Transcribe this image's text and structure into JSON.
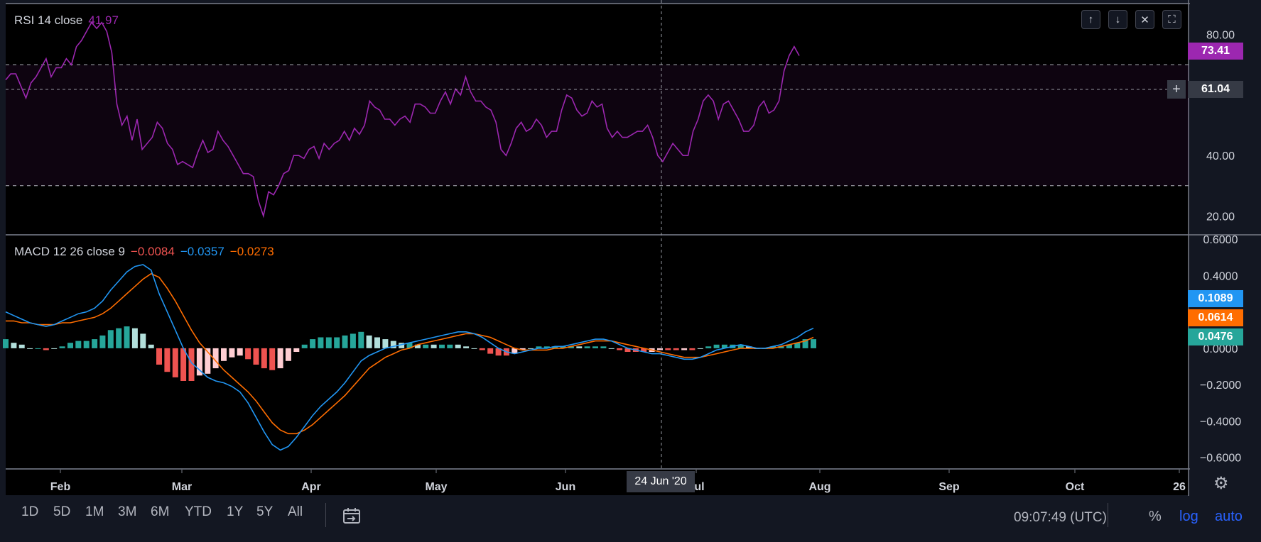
{
  "chart_data": [
    {
      "type": "line",
      "title": "RSI 14 close",
      "current_label": "41.97",
      "x_ticks": [
        "Feb",
        "Mar",
        "Apr",
        "May",
        "Jun",
        "Jul",
        "Aug",
        "Sep",
        "Oct",
        "26"
      ],
      "y_ticks": [
        "80.00",
        "40.00",
        "20.00"
      ],
      "ylim": [
        14,
        90
      ],
      "bands": {
        "upper": 70,
        "lower": 30
      },
      "crosshair_value": 61.04,
      "last_value": 73.41,
      "series": [
        {
          "values": [
            65,
            67,
            67,
            63,
            59,
            64,
            66,
            69,
            72,
            66,
            69,
            69,
            72,
            70,
            76,
            78,
            81,
            84,
            82,
            84,
            81,
            74,
            57,
            50,
            53,
            45,
            52,
            42,
            44,
            46,
            51,
            49,
            44,
            42,
            37,
            38,
            37,
            36,
            41,
            45,
            41,
            42,
            48,
            45,
            43,
            40,
            37,
            34,
            34,
            33,
            25,
            20,
            28,
            27,
            30,
            34,
            35,
            40,
            40,
            39,
            42,
            43,
            39,
            44,
            42,
            44,
            45,
            48,
            45,
            49,
            47,
            50,
            58,
            56,
            55,
            52,
            52,
            50,
            52,
            53,
            51,
            57,
            57,
            56,
            54,
            54,
            58,
            61,
            57,
            62,
            60,
            66,
            61,
            58,
            58,
            56,
            55,
            51,
            42,
            40,
            44,
            49,
            51,
            48,
            49,
            52,
            50,
            46,
            48,
            48,
            55,
            60,
            59,
            55,
            53,
            54,
            58,
            56,
            57,
            49,
            46,
            48,
            46,
            46,
            47,
            48,
            48,
            50,
            46,
            40,
            38,
            41,
            44,
            42,
            40,
            40,
            48,
            52,
            58,
            60,
            58,
            52,
            57,
            58,
            55,
            52,
            48,
            48,
            50,
            56,
            58,
            54,
            55,
            58,
            68,
            73,
            76,
            73
          ]
        }
      ]
    },
    {
      "type": "line",
      "title": "MACD 12 26 close 9",
      "legend_values": [
        "−0.0084",
        "−0.0357",
        "−0.0273"
      ],
      "x_ticks": [
        "Feb",
        "Mar",
        "Apr",
        "May",
        "Jun",
        "Jul",
        "Aug",
        "Sep",
        "Oct",
        "26"
      ],
      "y_ticks": [
        "0.6000",
        "0.4000",
        "0.0000",
        "−0.2000",
        "−0.4000",
        "−0.6000"
      ],
      "ylim": [
        -0.66,
        0.62
      ],
      "last_labels": [
        "0.1089",
        "0.0614",
        "0.0476"
      ],
      "series": [
        {
          "values": [
            0.2,
            0.18,
            0.16,
            0.14,
            0.13,
            0.12,
            0.13,
            0.15,
            0.17,
            0.19,
            0.2,
            0.22,
            0.26,
            0.32,
            0.37,
            0.42,
            0.45,
            0.46,
            0.43,
            0.3,
            0.2,
            0.1,
            0.0,
            -0.08,
            -0.12,
            -0.16,
            -0.18,
            -0.19,
            -0.21,
            -0.24,
            -0.3,
            -0.38,
            -0.46,
            -0.53,
            -0.56,
            -0.54,
            -0.49,
            -0.43,
            -0.37,
            -0.32,
            -0.28,
            -0.24,
            -0.19,
            -0.13,
            -0.07,
            -0.04,
            -0.02,
            0.0,
            0.01,
            0.02,
            0.03,
            0.04,
            0.05,
            0.06,
            0.07,
            0.08,
            0.09,
            0.09,
            0.08,
            0.06,
            0.03,
            0.0,
            -0.02,
            -0.03,
            -0.02,
            -0.01,
            0.0,
            0.0,
            0.01,
            0.01,
            0.02,
            0.03,
            0.04,
            0.05,
            0.05,
            0.04,
            0.02,
            0.0,
            -0.01,
            -0.02,
            -0.03,
            -0.03,
            -0.04,
            -0.05,
            -0.06,
            -0.06,
            -0.05,
            -0.03,
            -0.01,
            0.0,
            0.01,
            0.02,
            0.01,
            0.0,
            0.0,
            0.01,
            0.02,
            0.04,
            0.06,
            0.09,
            0.11
          ]
        },
        {
          "values": [
            0.15,
            0.15,
            0.14,
            0.14,
            0.13,
            0.13,
            0.13,
            0.14,
            0.14,
            0.15,
            0.16,
            0.17,
            0.19,
            0.22,
            0.26,
            0.3,
            0.34,
            0.38,
            0.41,
            0.39,
            0.33,
            0.26,
            0.18,
            0.1,
            0.03,
            -0.02,
            -0.07,
            -0.12,
            -0.16,
            -0.2,
            -0.24,
            -0.29,
            -0.35,
            -0.41,
            -0.45,
            -0.47,
            -0.47,
            -0.45,
            -0.42,
            -0.38,
            -0.34,
            -0.3,
            -0.26,
            -0.21,
            -0.16,
            -0.11,
            -0.08,
            -0.05,
            -0.03,
            -0.01,
            0.0,
            0.02,
            0.03,
            0.04,
            0.05,
            0.06,
            0.07,
            0.08,
            0.08,
            0.07,
            0.06,
            0.04,
            0.02,
            0.0,
            -0.01,
            -0.01,
            -0.01,
            -0.01,
            0.0,
            0.0,
            0.01,
            0.02,
            0.03,
            0.04,
            0.04,
            0.04,
            0.03,
            0.02,
            0.01,
            0.0,
            -0.01,
            -0.02,
            -0.03,
            -0.04,
            -0.05,
            -0.05,
            -0.05,
            -0.04,
            -0.03,
            -0.02,
            -0.01,
            0.0,
            0.0,
            0.0,
            0.0,
            0.0,
            0.01,
            0.02,
            0.03,
            0.04,
            0.06
          ]
        }
      ]
    }
  ],
  "price_labels": {
    "rsi_last": "73.41",
    "rsi_cursor": "61.04",
    "macd_line": "0.1089",
    "signal_line": "0.0614",
    "histogram": "0.0476"
  },
  "crosshair_date": "24 Jun '20",
  "timeframes": [
    "1D",
    "5D",
    "1M",
    "3M",
    "6M",
    "YTD",
    "1Y",
    "5Y",
    "All"
  ],
  "clock": "09:07:49 (UTC)",
  "options": {
    "percent": "%",
    "log": "log",
    "auto": "auto"
  },
  "controls": {
    "up": "↑",
    "down": "↓",
    "close": "✕",
    "fullscreen": "⛶"
  },
  "colors": {
    "bg": "#131722",
    "rsi": "#9c27b0",
    "macd": "#2196f3",
    "signal": "#ff6d00",
    "hist_up": "#26a69a",
    "hist_down": "#ef5350",
    "text": "#d1d4dc"
  }
}
